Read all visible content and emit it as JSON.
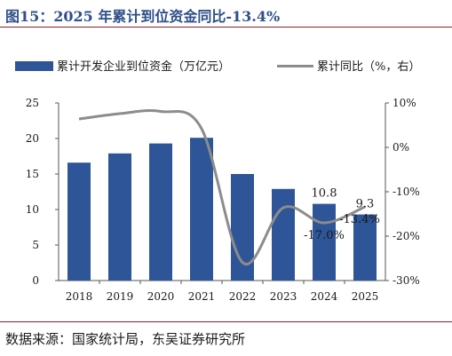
{
  "title": "图15：2025 年累计到位资金同比-13.4%",
  "source": "数据来源：国家统计局，东吴证券研究所",
  "chart_data": {
    "type": "bar",
    "categories": [
      "2018",
      "2019",
      "2020",
      "2021",
      "2022",
      "2023",
      "2024",
      "2025"
    ],
    "series": [
      {
        "name": "累计开发企业到位资金（万亿元）",
        "type": "bar",
        "axis": "left",
        "color": "#2e5597",
        "values": [
          16.6,
          17.9,
          19.3,
          20.1,
          15.0,
          12.9,
          10.8,
          9.3
        ]
      },
      {
        "name": "累计同比（%，右）",
        "type": "line",
        "axis": "right",
        "color": "#8c8c8c",
        "values": [
          6.4,
          7.6,
          8.1,
          4.2,
          -25.9,
          -13.6,
          -17.0,
          -13.4
        ]
      }
    ],
    "y_left": {
      "min": 0,
      "max": 25,
      "ticks": [
        "0",
        "5",
        "10",
        "15",
        "20",
        "25"
      ]
    },
    "y_right": {
      "min": -30,
      "max": 10,
      "ticks": [
        "-30%",
        "-20%",
        "-10%",
        "0%",
        "10%"
      ]
    },
    "annotations": [
      {
        "text": "10.8",
        "series": 0,
        "index": 6
      },
      {
        "text": "9.3",
        "series": 0,
        "index": 7
      },
      {
        "text": "-17.0%",
        "series": 1,
        "index": 6
      },
      {
        "text": "-13.4%",
        "series": 1,
        "index": 7
      }
    ],
    "legend_position": "top",
    "grid": false
  }
}
